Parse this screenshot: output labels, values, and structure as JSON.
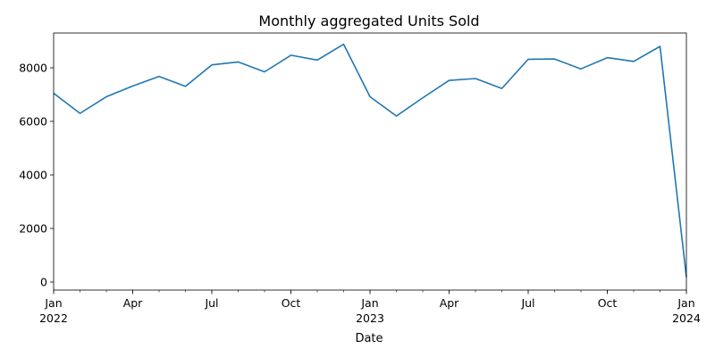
{
  "chart_data": {
    "type": "line",
    "title": "Monthly aggregated Units Sold",
    "xlabel": "Date",
    "ylabel": "",
    "xlim": [
      "2022-01",
      "2024-01"
    ],
    "ylim": [
      -300,
      9300
    ],
    "grid": false,
    "legend": "none",
    "line_color": "#1f77b4",
    "y_ticks": [
      0,
      2000,
      4000,
      6000,
      8000
    ],
    "x_ticks": [
      {
        "date": "2022-01",
        "label": "Jan",
        "sublabel": "2022"
      },
      {
        "date": "2022-04",
        "label": "Apr",
        "sublabel": ""
      },
      {
        "date": "2022-07",
        "label": "Jul",
        "sublabel": ""
      },
      {
        "date": "2022-10",
        "label": "Oct",
        "sublabel": ""
      },
      {
        "date": "2023-01",
        "label": "Jan",
        "sublabel": "2023"
      },
      {
        "date": "2023-04",
        "label": "Apr",
        "sublabel": ""
      },
      {
        "date": "2023-07",
        "label": "Jul",
        "sublabel": ""
      },
      {
        "date": "2023-10",
        "label": "Oct",
        "sublabel": ""
      },
      {
        "date": "2024-01",
        "label": "Jan",
        "sublabel": "2024"
      }
    ],
    "x": [
      "2022-01",
      "2022-02",
      "2022-03",
      "2022-04",
      "2022-05",
      "2022-06",
      "2022-07",
      "2022-08",
      "2022-09",
      "2022-10",
      "2022-11",
      "2022-12",
      "2023-01",
      "2023-02",
      "2023-03",
      "2023-04",
      "2023-05",
      "2023-06",
      "2023-07",
      "2023-08",
      "2023-09",
      "2023-10",
      "2023-11",
      "2023-12",
      "2024-01"
    ],
    "series": [
      {
        "values": [
          7050,
          6300,
          6920,
          7320,
          7680,
          7310,
          8110,
          8220,
          7850,
          8470,
          8290,
          8880,
          6920,
          6200,
          6880,
          7530,
          7600,
          7230,
          8320,
          8330,
          7960,
          8380,
          8240,
          8800,
          180
        ]
      }
    ]
  }
}
